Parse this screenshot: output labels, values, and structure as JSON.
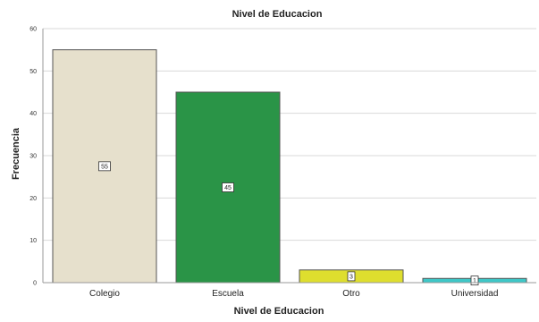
{
  "chart_data": {
    "type": "bar",
    "title": "Nivel de Educacion",
    "xlabel": "Nivel de Educacion",
    "ylabel": "Frecuencia",
    "categories": [
      "Colegio",
      "Escuela",
      "Otro",
      "Universidad"
    ],
    "values": [
      55,
      45,
      3,
      1
    ],
    "data_labels": [
      "55",
      "45",
      "3",
      "1"
    ],
    "colors": [
      "#e6e0cc",
      "#2a9447",
      "#dede2e",
      "#3ec7c7"
    ],
    "ylim": [
      0,
      60
    ],
    "yticks": [
      0,
      10,
      20,
      30,
      40,
      50,
      60
    ],
    "grid": true,
    "legend": "none"
  }
}
